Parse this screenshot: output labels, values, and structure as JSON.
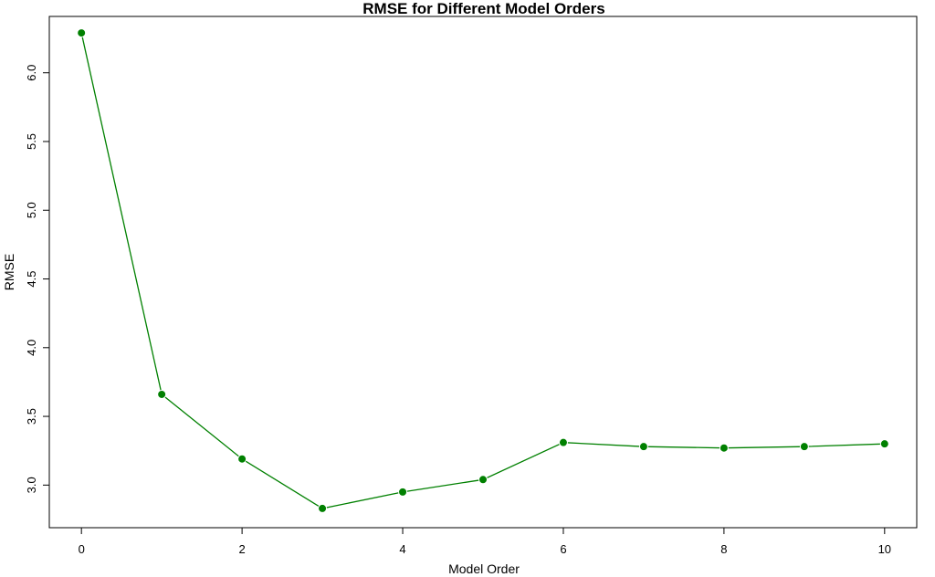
{
  "chart_data": {
    "type": "line",
    "title": "RMSE for Different Model Orders",
    "xlabel": "Model Order",
    "ylabel": "RMSE",
    "x": [
      0,
      1,
      2,
      3,
      4,
      5,
      6,
      7,
      8,
      9,
      10
    ],
    "series": [
      {
        "values": [
          6.29,
          3.66,
          3.19,
          2.83,
          2.95,
          3.04,
          3.31,
          3.28,
          3.27,
          3.28,
          3.3
        ],
        "color": "#008000"
      }
    ],
    "xticks": [
      0,
      2,
      4,
      6,
      8,
      10
    ],
    "xtick_labels": [
      "0",
      "2",
      "4",
      "6",
      "8",
      "10"
    ],
    "yticks": [
      3.0,
      3.5,
      4.0,
      4.5,
      5.0,
      5.5,
      6.0
    ],
    "ytick_labels": [
      "3.0",
      "3.5",
      "4.0",
      "4.5",
      "5.0",
      "5.5",
      "6.0"
    ],
    "xlim": [
      -0.4,
      10.4
    ],
    "ylim": [
      2.69,
      6.41
    ],
    "grid": false,
    "legend": "none"
  }
}
